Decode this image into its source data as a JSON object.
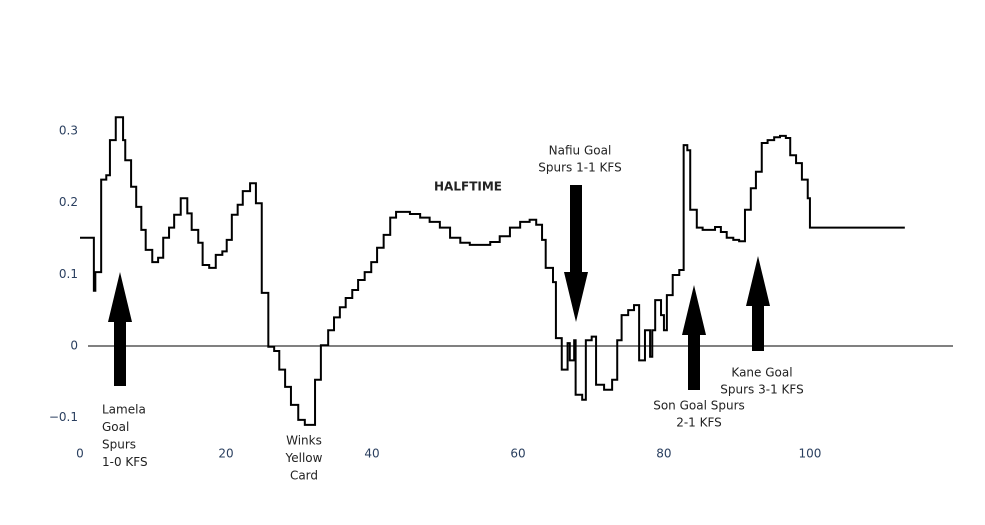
{
  "chart_data": {
    "type": "line",
    "line_shape": "hv",
    "color": "#000000",
    "x": [
      0,
      1.9,
      2.1,
      2.9,
      3.6,
      4.1,
      4.9,
      5.9,
      6.2,
      7.0,
      7.7,
      8.4,
      9.0,
      9.9,
      10.7,
      11.4,
      12.2,
      12.9,
      13.8,
      14.7,
      15.3,
      16.2,
      16.8,
      17.7,
      18.6,
      19.5,
      20.1,
      20.8,
      21.6,
      22.3,
      23.3,
      24.1,
      24.9,
      25.8,
      26.6,
      27.3,
      28.1,
      28.9,
      29.9,
      30.8,
      32.2,
      33.0,
      34.0,
      34.8,
      35.6,
      36.4,
      37.3,
      38.1,
      39.0,
      39.9,
      40.7,
      41.6,
      42.5,
      43.3,
      45.2,
      46.6,
      47.9,
      49.3,
      50.7,
      52.1,
      53.4,
      54.8,
      56.2,
      57.5,
      58.9,
      60.3,
      61.6,
      62.5,
      63.3,
      63.8,
      64.8,
      65.2,
      66.0,
      66.8,
      67.1,
      67.7,
      67.9,
      68.8,
      69.3,
      70.1,
      70.7,
      71.8,
      72.9,
      73.6,
      74.2,
      75.1,
      75.9,
      76.6,
      77.4,
      78.1,
      78.4,
      78.8,
      79.6,
      80.0,
      80.4,
      81.2,
      82.1,
      82.7,
      83.2,
      83.6,
      84.5,
      85.3,
      87.0,
      87.8,
      88.6,
      89.5,
      90.3,
      91.1,
      91.9,
      92.6,
      93.4,
      94.2,
      95.1,
      95.9,
      96.7,
      97.3,
      98.1,
      98.9,
      99.7,
      100.0,
      113.0
    ],
    "values": [
      0.151,
      0.077,
      0.103,
      0.232,
      0.238,
      0.287,
      0.319,
      0.287,
      0.259,
      0.222,
      0.194,
      0.162,
      0.134,
      0.117,
      0.123,
      0.151,
      0.165,
      0.183,
      0.206,
      0.185,
      0.162,
      0.144,
      0.113,
      0.109,
      0.127,
      0.132,
      0.148,
      0.183,
      0.197,
      0.216,
      0.227,
      0.199,
      0.074,
      -0.001,
      -0.007,
      -0.033,
      -0.057,
      -0.082,
      -0.103,
      -0.11,
      -0.047,
      0.001,
      0.022,
      0.04,
      0.054,
      0.067,
      0.078,
      0.092,
      0.103,
      0.117,
      0.137,
      0.155,
      0.179,
      0.187,
      0.184,
      0.179,
      0.173,
      0.165,
      0.151,
      0.144,
      0.141,
      0.141,
      0.145,
      0.153,
      0.165,
      0.173,
      0.176,
      0.169,
      0.148,
      0.109,
      0.089,
      0.011,
      -0.033,
      0.004,
      -0.02,
      0.008,
      -0.068,
      -0.075,
      0.008,
      0.013,
      -0.054,
      -0.061,
      -0.047,
      0.008,
      0.043,
      0.05,
      0.057,
      -0.02,
      0.022,
      -0.015,
      0.022,
      0.064,
      0.043,
      0.022,
      0.071,
      0.099,
      0.106,
      0.28,
      0.273,
      0.19,
      0.165,
      0.162,
      0.166,
      0.159,
      0.151,
      0.148,
      0.146,
      0.19,
      0.22,
      0.243,
      0.283,
      0.287,
      0.291,
      0.293,
      0.29,
      0.266,
      0.255,
      0.232,
      0.206,
      0.165,
      0.165
    ],
    "xlim": [
      0,
      119.6
    ],
    "ylim": [
      -0.145,
      0.343
    ],
    "xticks": [
      0,
      20,
      40,
      60,
      80,
      100
    ],
    "yticks": [
      {
        "value": -0.1,
        "label": "−0.1"
      },
      0,
      0.1,
      0.2,
      0.3
    ],
    "zeroline": true,
    "grid": false,
    "annotations": [
      {
        "lines": [
          "Lamela",
          "Goal",
          "Spurs",
          "1-0 KFS"
        ]
      },
      {
        "lines": [
          "Winks",
          "Yellow",
          "Card"
        ]
      },
      {
        "lines": [
          "HALFTIME"
        ]
      },
      {
        "lines": [
          "Nafiu Goal",
          "Spurs 1-1 KFS"
        ]
      },
      {
        "lines": [
          "Son Goal Spurs",
          "2-1 KFS"
        ]
      },
      {
        "lines": [
          "Kane Goal",
          "Spurs 3-1 KFS"
        ]
      }
    ]
  }
}
